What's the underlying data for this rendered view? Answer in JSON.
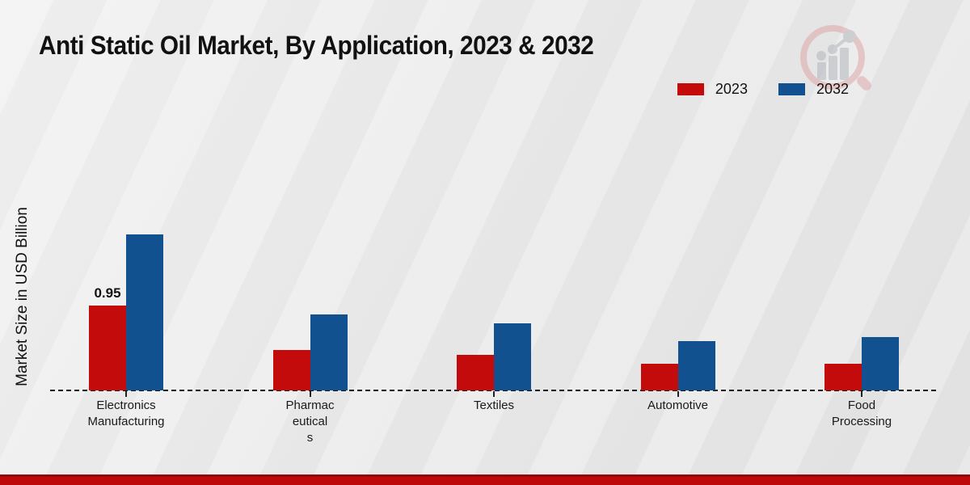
{
  "title": "Anti Static Oil Market, By Application, 2023 & 2032",
  "y_axis_label": "Market Size in USD Billion",
  "legend": [
    {
      "label": "2023",
      "color": "#c40b0b"
    },
    {
      "label": "2032",
      "color": "#11518f"
    }
  ],
  "chart_data": {
    "type": "bar",
    "title": "Anti Static Oil Market, By Application, 2023 & 2032",
    "ylabel": "Market Size in USD Billion",
    "categories": [
      "Electronics Manufacturing",
      "Pharmaceuticals",
      "Textiles",
      "Automotive",
      "Food Processing"
    ],
    "category_label_lines": [
      [
        "Electronics",
        "Manufacturing"
      ],
      [
        "Pharmac",
        "eutical",
        "s"
      ],
      [
        "Textiles"
      ],
      [
        "Automotive"
      ],
      [
        "Food",
        "Processing"
      ]
    ],
    "series": [
      {
        "name": "2023",
        "color": "#c40b0b",
        "values": [
          0.95,
          0.45,
          0.4,
          0.3,
          0.3
        ]
      },
      {
        "name": "2032",
        "color": "#11518f",
        "values": [
          1.75,
          0.85,
          0.75,
          0.55,
          0.6
        ]
      }
    ],
    "data_labels": [
      {
        "series_index": 0,
        "category_index": 0,
        "text": "0.95"
      }
    ],
    "ylim": [
      0,
      2.0
    ],
    "grid": false,
    "baseline_style": "dashed",
    "legend_position": "top-right"
  },
  "footer": {
    "bar_color": "#bd0909"
  }
}
